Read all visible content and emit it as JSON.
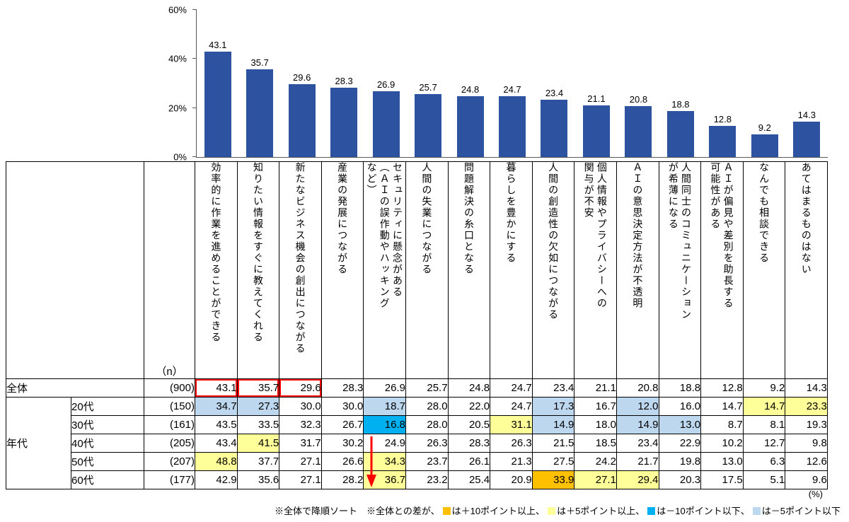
{
  "colors": {
    "bar": "#2d52a0",
    "axis": "#595959",
    "hl_plus10": "#ffc000",
    "hl_plus5": "#ffff99",
    "hl_minus10": "#00b0f0",
    "hl_minus5": "#bdd7ee",
    "red": "#ff0000"
  },
  "legend": {
    "label": "全体(n=900)"
  },
  "chart_data": {
    "type": "bar",
    "title": "",
    "xlabel": "",
    "ylabel": "",
    "ylim": [
      0,
      60
    ],
    "yticks": [
      {
        "label": "0%",
        "value": 0
      },
      {
        "label": "20%",
        "value": 20
      },
      {
        "label": "40%",
        "value": 40
      },
      {
        "label": "60%",
        "value": 60
      }
    ],
    "legend_position": "left",
    "grid": false,
    "series_name": "全体(n=900)",
    "categories": [
      "効率的に作業を進めることができる",
      "知りたい情報をすぐに教えてくれる",
      "新たなビジネス機会の創出につながる",
      "産業の発展につながる",
      "セキュリティに懸念がある\n（ＡＩの誤作動やハッキング\nなど）",
      "人間の失業につながる",
      "問題解決の糸口となる",
      "暮らしを豊かにする",
      "人間の創造性の欠如につながる",
      "個人情報やプライバシーへの\n関与が不安",
      "ＡＩの意思決定方法が不透明",
      "人間同士のコミュニケーション\nが希薄になる",
      "ＡＩが偏見や差別を助長する\n可能性がある",
      "なんでも相談できる",
      "あてはまるものはない"
    ],
    "values": [
      43.1,
      35.7,
      29.6,
      28.3,
      26.9,
      25.7,
      24.8,
      24.7,
      23.4,
      21.1,
      20.8,
      18.8,
      12.8,
      9.2,
      14.3
    ]
  },
  "table": {
    "n_header": "（n）",
    "group_label": "年代",
    "rows": [
      {
        "label": "全体",
        "n": "(900)",
        "values": [
          43.1,
          35.7,
          29.6,
          28.3,
          26.9,
          25.7,
          24.8,
          24.7,
          23.4,
          21.1,
          20.8,
          18.8,
          12.8,
          9.2,
          14.3
        ],
        "hl": [
          "",
          "",
          "",
          "",
          "",
          "",
          "",
          "",
          "",
          "",
          "",
          "",
          "",
          "",
          ""
        ],
        "red_box": [
          0,
          1,
          2
        ]
      },
      {
        "label": "20代",
        "n": "(150)",
        "values": [
          34.7,
          27.3,
          30.0,
          30.0,
          18.7,
          28.0,
          22.0,
          24.7,
          17.3,
          16.7,
          12.0,
          16.0,
          14.7,
          14.7,
          23.3
        ],
        "hl": [
          "m5",
          "m5",
          "",
          "",
          "m5",
          "",
          "",
          "",
          "m5",
          "",
          "m5",
          "",
          "",
          "p5",
          "p5"
        ]
      },
      {
        "label": "30代",
        "n": "(161)",
        "values": [
          43.5,
          33.5,
          32.3,
          26.7,
          16.8,
          28.0,
          20.5,
          31.1,
          14.9,
          18.0,
          14.9,
          13.0,
          8.7,
          8.1,
          19.3
        ],
        "hl": [
          "",
          "",
          "",
          "",
          "m10",
          "",
          "",
          "p5",
          "m5",
          "",
          "m5",
          "m5",
          "",
          "",
          ""
        ]
      },
      {
        "label": "40代",
        "n": "(205)",
        "values": [
          43.4,
          41.5,
          31.7,
          30.2,
          24.9,
          26.3,
          28.3,
          26.3,
          21.5,
          18.5,
          23.4,
          22.9,
          10.2,
          12.7,
          9.8
        ],
        "hl": [
          "",
          "p5",
          "",
          "",
          "",
          "",
          "",
          "",
          "",
          "",
          "",
          "",
          "",
          "",
          ""
        ]
      },
      {
        "label": "50代",
        "n": "(207)",
        "values": [
          48.8,
          37.7,
          27.1,
          26.6,
          34.3,
          23.7,
          26.1,
          21.3,
          27.5,
          24.2,
          21.7,
          19.8,
          13.0,
          6.3,
          12.6
        ],
        "hl": [
          "p5",
          "",
          "",
          "",
          "p5",
          "",
          "",
          "",
          "",
          "",
          "",
          "",
          "",
          "",
          ""
        ]
      },
      {
        "label": "60代",
        "n": "(177)",
        "values": [
          42.9,
          35.6,
          27.1,
          28.2,
          36.7,
          23.2,
          25.4,
          20.9,
          33.9,
          27.1,
          29.4,
          20.3,
          17.5,
          5.1,
          9.6
        ],
        "hl": [
          "",
          "",
          "",
          "",
          "p5",
          "",
          "",
          "",
          "p10",
          "p5",
          "p5",
          "",
          "",
          "",
          ""
        ]
      }
    ]
  },
  "annotations": {
    "red_arrow_column_index": 4
  },
  "footer": {
    "percent_label": "(%)",
    "sort_note": "※全体で降順ソート",
    "diff_note": "※全体との差が、",
    "legend": [
      {
        "color": "#ffc000",
        "text": "は＋10ポイント以上、"
      },
      {
        "color": "#ffff99",
        "text": "は＋5ポイント以上、"
      },
      {
        "color": "#00b0f0",
        "text": "は－10ポイント以下、"
      },
      {
        "color": "#bdd7ee",
        "text": "は－5ポイント以下"
      }
    ]
  }
}
